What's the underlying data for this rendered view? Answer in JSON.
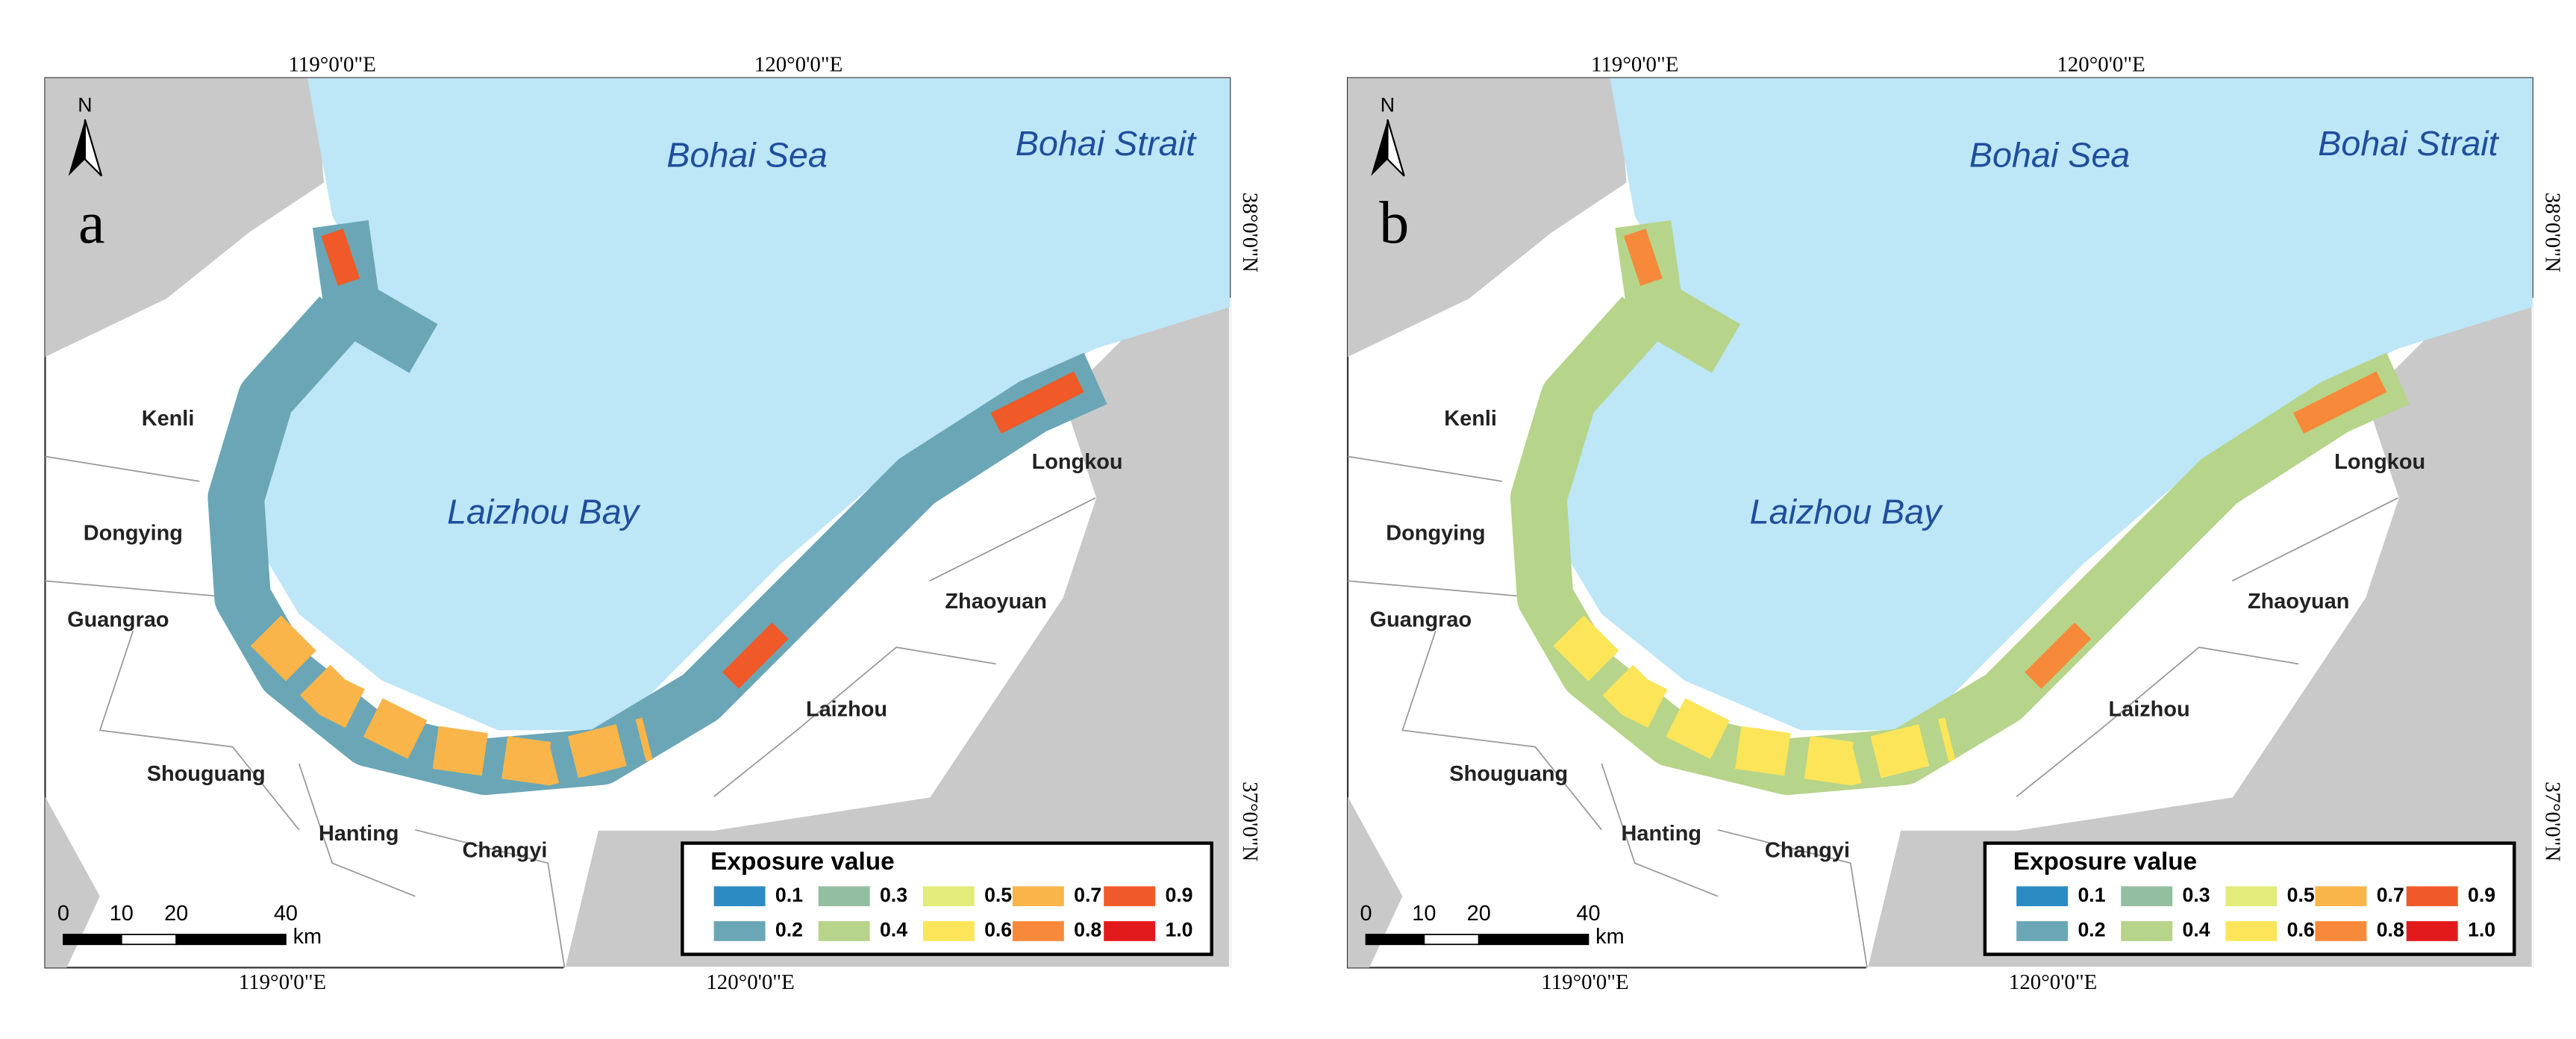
{
  "panels": [
    {
      "label": "a"
    },
    {
      "label": "b"
    }
  ],
  "graticule": {
    "top": [
      "119°0'0\"E",
      "120°0'0\"E"
    ],
    "bottom": [
      "119°0'0\"E",
      "120°0'0\"E"
    ],
    "right": [
      "38°0'0\"N",
      "37°0'0\"N"
    ]
  },
  "north": "N",
  "water_labels": [
    "Bohai Sea",
    "Bohai Strait",
    "Laizhou Bay"
  ],
  "places": [
    "Kenli",
    "Dongying",
    "Guangrao",
    "Shouguang",
    "Hanting",
    "Changyi",
    "Laizhou",
    "Zhaoyuan",
    "Longkou"
  ],
  "scale_bar": {
    "labels": [
      "0",
      "10",
      "20",
      "40"
    ],
    "unit": "km"
  },
  "legend": {
    "title": "Exposure value",
    "items": [
      {
        "label": "0.1",
        "color": "#2b8cc4"
      },
      {
        "label": "0.2",
        "color": "#6aa6b6"
      },
      {
        "label": "0.3",
        "color": "#94bea0"
      },
      {
        "label": "0.4",
        "color": "#b6d48a"
      },
      {
        "label": "0.5",
        "color": "#e3eb7a"
      },
      {
        "label": "0.6",
        "color": "#fde55a"
      },
      {
        "label": "0.7",
        "color": "#f9b54a"
      },
      {
        "label": "0.8",
        "color": "#f7893a"
      },
      {
        "label": "0.9",
        "color": "#ef5a28"
      },
      {
        "label": "1.0",
        "color": "#e31a1c"
      }
    ]
  }
}
